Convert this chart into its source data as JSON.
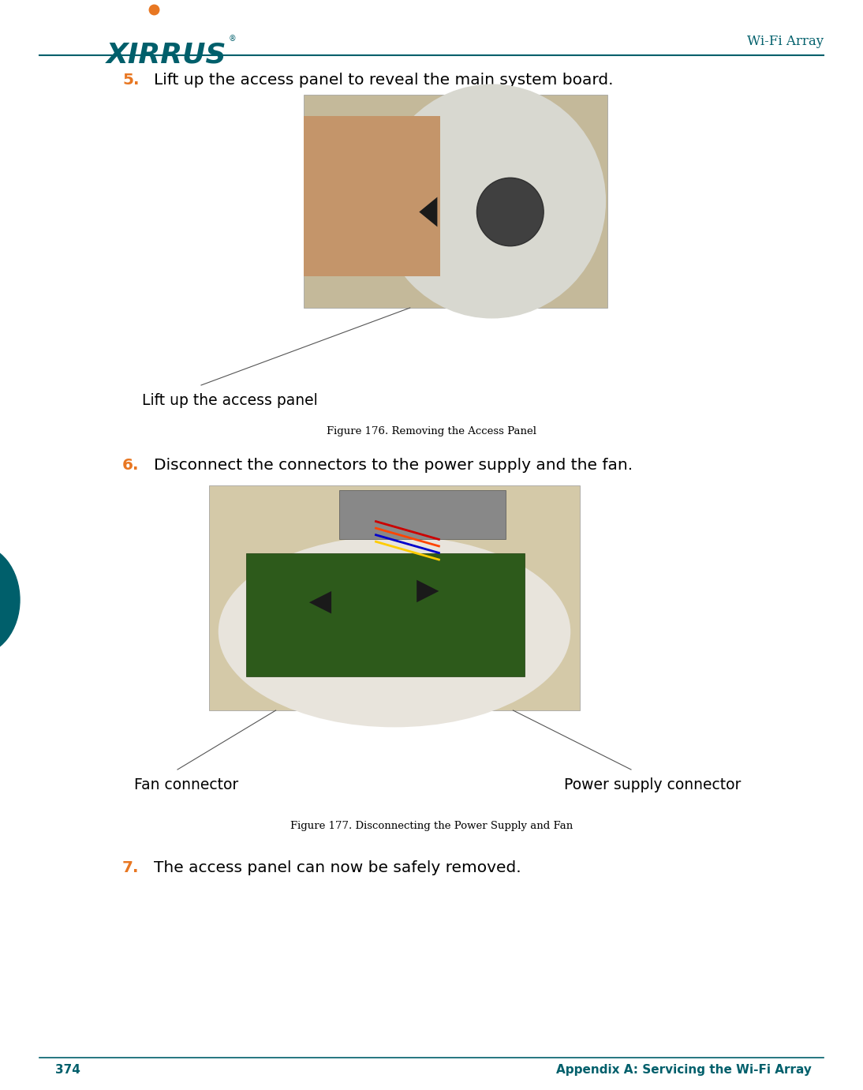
{
  "bg_color": "#ffffff",
  "header_line_color": "#005f6b",
  "footer_line_color": "#005f6b",
  "logo_text": "XIRRUS",
  "logo_color": "#005f6b",
  "logo_dot_color": "#e87722",
  "header_right_text": "Wi-Fi Array",
  "header_right_color": "#005f6b",
  "footer_left_text": "374",
  "footer_right_text": "Appendix A: Servicing the Wi-Fi Array",
  "footer_text_color": "#005f6b",
  "step5_number": "5.",
  "step5_number_color": "#e87722",
  "step5_text": "Lift up the access panel to reveal the main system board.",
  "step5_text_color": "#000000",
  "step5_fontsize": 14.5,
  "fig176_caption": "Figure 176. Removing the Access Panel",
  "fig177_caption": "Figure 177. Disconnecting the Power Supply and Fan",
  "fig_caption_color": "#000000",
  "fig_caption_fontsize": 9.5,
  "annotation1_text": "Lift up the access panel",
  "annotation1_color": "#000000",
  "annotation1_fontsize": 13.5,
  "annotation2_left_text": "Fan connector",
  "annotation2_right_text": "Power supply connector",
  "annotation2_color": "#000000",
  "annotation2_fontsize": 13.5,
  "step6_number": "6.",
  "step6_number_color": "#e87722",
  "step6_text": "Disconnect the connectors to the power supply and the fan.",
  "step6_text_color": "#000000",
  "step6_fontsize": 14.5,
  "step7_number": "7.",
  "step7_number_color": "#e87722",
  "step7_text": "The access panel can now be safely removed.",
  "step7_text_color": "#000000",
  "step7_fontsize": 14.5,
  "teal_circle_color": "#005f6b"
}
